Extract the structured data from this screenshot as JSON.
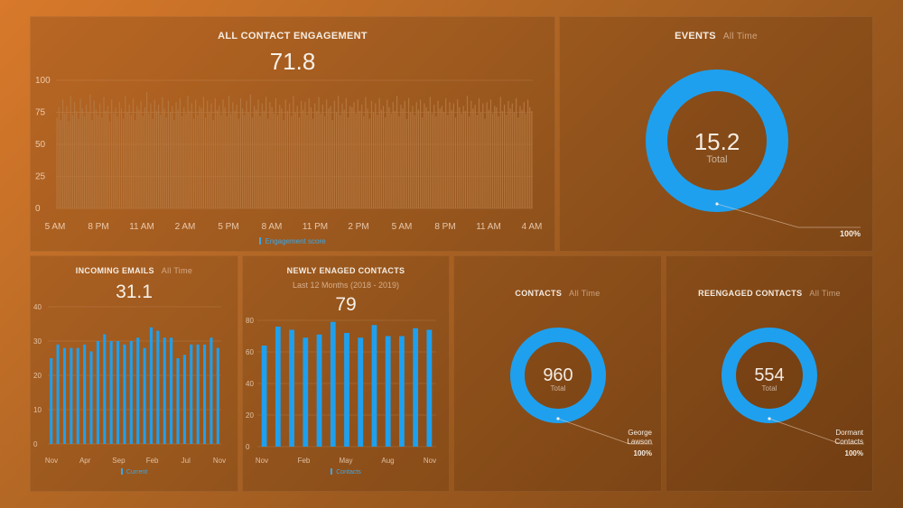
{
  "colors": {
    "accent": "#1ea0ef",
    "bar_orange": "#b4763e"
  },
  "engagement": {
    "title": "ALL CONTACT ENGAGEMENT",
    "value": "71.8",
    "legend": "Engagement score",
    "chart_data": {
      "type": "bar",
      "title": "ALL CONTACT ENGAGEMENT",
      "series_name": "Engagement score",
      "ylim": [
        0,
        100
      ],
      "yticks": [
        "0",
        "25",
        "50",
        "75",
        "100"
      ],
      "xticks": [
        "5 AM",
        "8 PM",
        "11 AM",
        "2 AM",
        "5 PM",
        "8 AM",
        "11 PM",
        "2 PM",
        "5 AM",
        "8 PM",
        "11 AM",
        "4 AM"
      ],
      "values": [
        71,
        79,
        69,
        85,
        74,
        80,
        68,
        88,
        73,
        83,
        76,
        70,
        86,
        78,
        72,
        81,
        75,
        89,
        69,
        84,
        77,
        73,
        82,
        71,
        87,
        76,
        80,
        68,
        85,
        74,
        79,
        72,
        83,
        78,
        70,
        88,
        75,
        81,
        73,
        86,
        69,
        80,
        77,
        84,
        72,
        79,
        91,
        74,
        82,
        70,
        85,
        76,
        81,
        73,
        87,
        78,
        71,
        84,
        75,
        80,
        69,
        83,
        77,
        86,
        72,
        79,
        74,
        88,
        76,
        82,
        70,
        85,
        73,
        80,
        78,
        87,
        71,
        84,
        75,
        82,
        69,
        86,
        77,
        80,
        73,
        85,
        79,
        72,
        88,
        74,
        83,
        76,
        81,
        70,
        86,
        78,
        73,
        84,
        75,
        89,
        71,
        80,
        77,
        85,
        72,
        82,
        76,
        87,
        70,
        83,
        79,
        74,
        86,
        73,
        81,
        78,
        69,
        85,
        76,
        82,
        72,
        88,
        75,
        80,
        71,
        84,
        77,
        83,
        73,
        86,
        79,
        70,
        82,
        76,
        87,
        74,
        81,
        72,
        85,
        78,
        80,
        69,
        84,
        75,
        88,
        73,
        82,
        77,
        86,
        71,
        80,
        79,
        83,
        74,
        85,
        76,
        81,
        72,
        87,
        78,
        70,
        84,
        75,
        82,
        73,
        86,
        77,
        80,
        71,
        85,
        79,
        74,
        83,
        76,
        88,
        72,
        81,
        78,
        84,
        70,
        86,
        75,
        80,
        73,
        83,
        77,
        85,
        71,
        82,
        79,
        76,
        87,
        74,
        81,
        72,
        84,
        78,
        80,
        75,
        86,
        73,
        83,
        77,
        82,
        71,
        85,
        79,
        74,
        80,
        76,
        88,
        72,
        84,
        78,
        81,
        73,
        86,
        75,
        82,
        70,
        83,
        77,
        85,
        74,
        80,
        79,
        72,
        87,
        76,
        81,
        73,
        84,
        78,
        82,
        75,
        86,
        71,
        80,
        77,
        83,
        74,
        85,
        79,
        76
      ]
    }
  },
  "events": {
    "title": "EVENTS",
    "period": "All Time",
    "value": "15.2",
    "value_label": "Total",
    "pct": "100%",
    "chart_data": {
      "type": "pie",
      "title": "EVENTS",
      "categories": [
        "Total"
      ],
      "values": [
        100
      ]
    }
  },
  "emails": {
    "title": "INCOMING EMAILS",
    "period": "All Time",
    "value": "31.1",
    "legend": "Current",
    "chart_data": {
      "type": "bar",
      "title": "INCOMING EMAILS",
      "series_name": "Current",
      "ylim": [
        0,
        40
      ],
      "yticks": [
        "0",
        "10",
        "20",
        "30",
        "40"
      ],
      "xticks": [
        "Nov",
        "Apr",
        "Sep",
        "Feb",
        "Jul",
        "Nov"
      ],
      "values": [
        25,
        29,
        28,
        28,
        28,
        29,
        27,
        30,
        32,
        30,
        30,
        29,
        30,
        31,
        28,
        34,
        33,
        31,
        31,
        25,
        26,
        29,
        29,
        29,
        31,
        28
      ]
    }
  },
  "newly": {
    "title": "NEWLY ENAGED CONTACTS",
    "subtitle": "Last 12 Months (2018 - 2019)",
    "value": "79",
    "legend": "Contacts",
    "chart_data": {
      "type": "bar",
      "title": "NEWLY ENAGED CONTACTS",
      "series_name": "Contacts",
      "ylim": [
        0,
        80
      ],
      "yticks": [
        "0",
        "20",
        "40",
        "60",
        "80"
      ],
      "xticks": [
        "Nov",
        "Feb",
        "May",
        "Aug",
        "Nov"
      ],
      "values": [
        64,
        76,
        74,
        69,
        71,
        79,
        72,
        69,
        77,
        70,
        70,
        75,
        74
      ]
    }
  },
  "contacts": {
    "title": "CONTACTS",
    "period": "All Time",
    "value": "960",
    "value_label": "Total",
    "slice_label_1": "George",
    "slice_label_2": "Lawson",
    "pct": "100%",
    "chart_data": {
      "type": "pie",
      "title": "CONTACTS",
      "categories": [
        "George Lawson"
      ],
      "values": [
        100
      ]
    }
  },
  "reengaged": {
    "title": "REENGAGED CONTACTS",
    "period": "All Time",
    "value": "554",
    "value_label": "Total",
    "slice_label_1": "Dormant",
    "slice_label_2": "Contacts",
    "pct": "100%",
    "chart_data": {
      "type": "pie",
      "title": "REENGAGED CONTACTS",
      "categories": [
        "Dormant Contacts"
      ],
      "values": [
        100
      ]
    }
  }
}
